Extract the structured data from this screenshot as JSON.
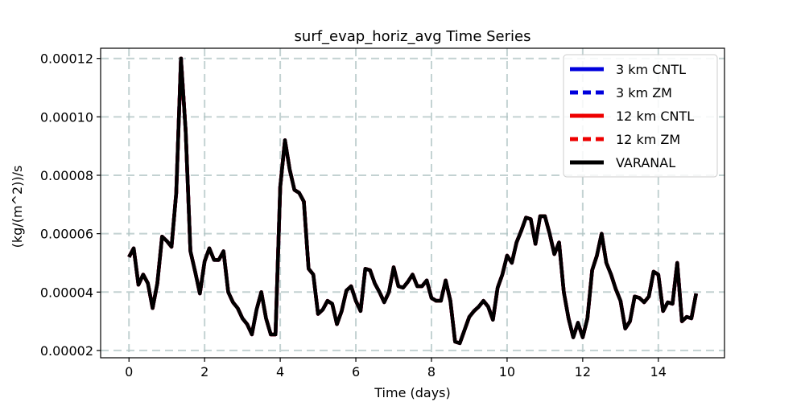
{
  "chart_data": {
    "type": "line",
    "title": "surf_evap_horiz_avg Time Series",
    "xlabel": "Time (days)",
    "ylabel": "(kg/(m^2))/s",
    "xlim": [
      -0.75,
      15.75
    ],
    "ylim": [
      1.75e-05,
      0.0001235
    ],
    "xticks": [
      0,
      2,
      4,
      6,
      8,
      10,
      12,
      14
    ],
    "xtick_labels": [
      "0",
      "2",
      "4",
      "6",
      "8",
      "10",
      "12",
      "14"
    ],
    "yticks": [
      2e-05,
      4e-05,
      6e-05,
      8e-05,
      0.0001,
      0.00012
    ],
    "ytick_labels": [
      "0.00002",
      "0.00004",
      "0.00006",
      "0.00008",
      "0.00010",
      "0.00012"
    ],
    "grid": true,
    "legend_position": "top-right",
    "x": [
      0,
      0.125,
      0.25,
      0.375,
      0.5,
      0.625,
      0.75,
      0.875,
      1,
      1.125,
      1.25,
      1.375,
      1.5,
      1.625,
      1.75,
      1.875,
      2,
      2.125,
      2.25,
      2.375,
      2.5,
      2.625,
      2.75,
      2.875,
      3,
      3.125,
      3.25,
      3.375,
      3.5,
      3.625,
      3.75,
      3.875,
      4,
      4.125,
      4.25,
      4.375,
      4.5,
      4.625,
      4.75,
      4.875,
      5,
      5.125,
      5.25,
      5.375,
      5.5,
      5.625,
      5.75,
      5.875,
      6,
      6.125,
      6.25,
      6.375,
      6.5,
      6.625,
      6.75,
      6.875,
      7,
      7.125,
      7.25,
      7.375,
      7.5,
      7.625,
      7.75,
      7.875,
      8,
      8.125,
      8.25,
      8.375,
      8.5,
      8.625,
      8.75,
      8.875,
      9,
      9.125,
      9.25,
      9.375,
      9.5,
      9.625,
      9.75,
      9.875,
      10,
      10.125,
      10.25,
      10.375,
      10.5,
      10.625,
      10.75,
      10.875,
      11,
      11.125,
      11.25,
      11.375,
      11.5,
      11.625,
      11.75,
      11.875,
      12,
      12.125,
      12.25,
      12.375,
      12.5,
      12.625,
      12.75,
      12.875,
      13,
      13.125,
      13.25,
      13.375,
      13.5,
      13.625,
      13.75,
      13.875,
      14,
      14.125,
      14.25,
      14.375,
      14.5,
      14.625,
      14.75,
      14.875,
      15
    ],
    "series": [
      {
        "name": "3 km CNTL",
        "color": "#0000dd",
        "dash": "solid",
        "values": [
          5.2e-05,
          5.5e-05,
          4.25e-05,
          4.6e-05,
          4.3e-05,
          3.45e-05,
          4.3e-05,
          5.9e-05,
          5.75e-05,
          5.55e-05,
          7.4e-05,
          0.00012,
          9.5e-05,
          5.4e-05,
          4.7e-05,
          3.95e-05,
          5.05e-05,
          5.5e-05,
          5.1e-05,
          5.1e-05,
          5.4e-05,
          4e-05,
          3.65e-05,
          3.45e-05,
          3.1e-05,
          2.9e-05,
          2.55e-05,
          3.4e-05,
          4e-05,
          3.1e-05,
          2.55e-05,
          2.55e-05,
          7.6e-05,
          9.2e-05,
          8.2e-05,
          7.5e-05,
          7.4e-05,
          7.1e-05,
          4.8e-05,
          4.6e-05,
          3.25e-05,
          3.4e-05,
          3.7e-05,
          3.6e-05,
          2.9e-05,
          3.35e-05,
          4.05e-05,
          4.2e-05,
          3.7e-05,
          3.35e-05,
          4.8e-05,
          4.75e-05,
          4.3e-05,
          4e-05,
          3.65e-05,
          4e-05,
          4.85e-05,
          4.2e-05,
          4.15e-05,
          4.35e-05,
          4.6e-05,
          4.2e-05,
          4.2e-05,
          4.4e-05,
          3.8e-05,
          3.7e-05,
          3.7e-05,
          4.4e-05,
          3.7e-05,
          2.3e-05,
          2.25e-05,
          2.7e-05,
          3.15e-05,
          3.35e-05,
          3.5e-05,
          3.7e-05,
          3.5e-05,
          3.05e-05,
          4.15e-05,
          4.6e-05,
          5.25e-05,
          5e-05,
          5.7e-05,
          6.1e-05,
          6.55e-05,
          6.5e-05,
          5.65e-05,
          6.6e-05,
          6.6e-05,
          6e-05,
          5.3e-05,
          5.7e-05,
          4e-05,
          3.1e-05,
          2.45e-05,
          2.95e-05,
          2.45e-05,
          3.1e-05,
          4.75e-05,
          5.25e-05,
          6e-05,
          5e-05,
          4.6e-05,
          4.1e-05,
          3.7e-05,
          2.75e-05,
          3e-05,
          3.85e-05,
          3.8e-05,
          3.65e-05,
          3.85e-05,
          4.7e-05,
          4.6e-05,
          3.35e-05,
          3.65e-05,
          3.6e-05,
          5e-05,
          3e-05,
          3.15e-05,
          3.1e-05,
          3.95e-05
        ]
      },
      {
        "name": "3 km ZM",
        "color": "#0000dd",
        "dash": "dashed",
        "values": [
          5.2e-05,
          5.5e-05,
          4.25e-05,
          4.6e-05,
          4.3e-05,
          3.45e-05,
          4.3e-05,
          5.9e-05,
          5.75e-05,
          5.55e-05,
          7.4e-05,
          0.00012,
          9.5e-05,
          5.4e-05,
          4.7e-05,
          3.95e-05,
          5.05e-05,
          5.5e-05,
          5.1e-05,
          5.1e-05,
          5.4e-05,
          4e-05,
          3.65e-05,
          3.45e-05,
          3.1e-05,
          2.9e-05,
          2.55e-05,
          3.4e-05,
          4e-05,
          3.1e-05,
          2.55e-05,
          2.55e-05,
          7.6e-05,
          9.2e-05,
          8.2e-05,
          7.5e-05,
          7.4e-05,
          7.1e-05,
          4.8e-05,
          4.6e-05,
          3.25e-05,
          3.4e-05,
          3.7e-05,
          3.6e-05,
          2.9e-05,
          3.35e-05,
          4.05e-05,
          4.2e-05,
          3.7e-05,
          3.35e-05,
          4.8e-05,
          4.75e-05,
          4.3e-05,
          4e-05,
          3.65e-05,
          4e-05,
          4.85e-05,
          4.2e-05,
          4.15e-05,
          4.35e-05,
          4.6e-05,
          4.2e-05,
          4.2e-05,
          4.4e-05,
          3.8e-05,
          3.7e-05,
          3.7e-05,
          4.4e-05,
          3.7e-05,
          2.3e-05,
          2.25e-05,
          2.7e-05,
          3.15e-05,
          3.35e-05,
          3.5e-05,
          3.7e-05,
          3.5e-05,
          3.05e-05,
          4.15e-05,
          4.6e-05,
          5.25e-05,
          5e-05,
          5.7e-05,
          6.1e-05,
          6.55e-05,
          6.5e-05,
          5.65e-05,
          6.6e-05,
          6.6e-05,
          6e-05,
          5.3e-05,
          5.7e-05,
          4e-05,
          3.1e-05,
          2.45e-05,
          2.95e-05,
          2.45e-05,
          3.1e-05,
          4.75e-05,
          5.25e-05,
          6e-05,
          5e-05,
          4.6e-05,
          4.1e-05,
          3.7e-05,
          2.75e-05,
          3e-05,
          3.85e-05,
          3.8e-05,
          3.65e-05,
          3.85e-05,
          4.7e-05,
          4.6e-05,
          3.35e-05,
          3.65e-05,
          3.6e-05,
          5e-05,
          3e-05,
          3.15e-05,
          3.1e-05,
          3.95e-05
        ]
      },
      {
        "name": "12 km CNTL",
        "color": "#ee0000",
        "dash": "solid",
        "values": [
          5.2e-05,
          5.5e-05,
          4.25e-05,
          4.6e-05,
          4.3e-05,
          3.45e-05,
          4.3e-05,
          5.9e-05,
          5.75e-05,
          5.55e-05,
          7.4e-05,
          0.00012,
          9.5e-05,
          5.4e-05,
          4.7e-05,
          3.95e-05,
          5.05e-05,
          5.5e-05,
          5.1e-05,
          5.1e-05,
          5.4e-05,
          4e-05,
          3.65e-05,
          3.45e-05,
          3.1e-05,
          2.9e-05,
          2.55e-05,
          3.4e-05,
          4e-05,
          3.1e-05,
          2.55e-05,
          2.55e-05,
          7.6e-05,
          9.2e-05,
          8.2e-05,
          7.5e-05,
          7.4e-05,
          7.1e-05,
          4.8e-05,
          4.6e-05,
          3.25e-05,
          3.4e-05,
          3.7e-05,
          3.6e-05,
          2.9e-05,
          3.35e-05,
          4.05e-05,
          4.2e-05,
          3.7e-05,
          3.35e-05,
          4.8e-05,
          4.75e-05,
          4.3e-05,
          4e-05,
          3.65e-05,
          4e-05,
          4.85e-05,
          4.2e-05,
          4.15e-05,
          4.35e-05,
          4.6e-05,
          4.2e-05,
          4.2e-05,
          4.4e-05,
          3.8e-05,
          3.7e-05,
          3.7e-05,
          4.4e-05,
          3.7e-05,
          2.3e-05,
          2.25e-05,
          2.7e-05,
          3.15e-05,
          3.35e-05,
          3.5e-05,
          3.7e-05,
          3.5e-05,
          3.05e-05,
          4.15e-05,
          4.6e-05,
          5.25e-05,
          5e-05,
          5.7e-05,
          6.1e-05,
          6.55e-05,
          6.5e-05,
          5.65e-05,
          6.6e-05,
          6.6e-05,
          6e-05,
          5.3e-05,
          5.7e-05,
          4e-05,
          3.1e-05,
          2.45e-05,
          2.95e-05,
          2.45e-05,
          3.1e-05,
          4.75e-05,
          5.25e-05,
          6e-05,
          5e-05,
          4.6e-05,
          4.1e-05,
          3.7e-05,
          2.75e-05,
          3e-05,
          3.85e-05,
          3.8e-05,
          3.65e-05,
          3.85e-05,
          4.7e-05,
          4.6e-05,
          3.35e-05,
          3.65e-05,
          3.6e-05,
          5e-05,
          3e-05,
          3.15e-05,
          3.1e-05,
          3.95e-05
        ]
      },
      {
        "name": "12 km ZM",
        "color": "#ee0000",
        "dash": "dashed",
        "values": [
          5.2e-05,
          5.5e-05,
          4.25e-05,
          4.6e-05,
          4.3e-05,
          3.45e-05,
          4.3e-05,
          5.9e-05,
          5.75e-05,
          5.55e-05,
          7.4e-05,
          0.00012,
          9.5e-05,
          5.4e-05,
          4.7e-05,
          3.95e-05,
          5.05e-05,
          5.5e-05,
          5.1e-05,
          5.1e-05,
          5.4e-05,
          4e-05,
          3.65e-05,
          3.45e-05,
          3.1e-05,
          2.9e-05,
          2.55e-05,
          3.4e-05,
          4e-05,
          3.1e-05,
          2.55e-05,
          2.55e-05,
          7.6e-05,
          9.2e-05,
          8.2e-05,
          7.5e-05,
          7.4e-05,
          7.1e-05,
          4.8e-05,
          4.6e-05,
          3.25e-05,
          3.4e-05,
          3.7e-05,
          3.6e-05,
          2.9e-05,
          3.35e-05,
          4.05e-05,
          4.2e-05,
          3.7e-05,
          3.35e-05,
          4.8e-05,
          4.75e-05,
          4.3e-05,
          4e-05,
          3.65e-05,
          4e-05,
          4.85e-05,
          4.2e-05,
          4.15e-05,
          4.35e-05,
          4.6e-05,
          4.2e-05,
          4.2e-05,
          4.4e-05,
          3.8e-05,
          3.7e-05,
          3.7e-05,
          4.4e-05,
          3.7e-05,
          2.3e-05,
          2.25e-05,
          2.7e-05,
          3.15e-05,
          3.35e-05,
          3.5e-05,
          3.7e-05,
          3.5e-05,
          3.05e-05,
          4.15e-05,
          4.6e-05,
          5.25e-05,
          5e-05,
          5.7e-05,
          6.1e-05,
          6.55e-05,
          6.5e-05,
          5.65e-05,
          6.6e-05,
          6.6e-05,
          6e-05,
          5.3e-05,
          5.7e-05,
          4e-05,
          3.1e-05,
          2.45e-05,
          2.95e-05,
          2.45e-05,
          3.1e-05,
          4.75e-05,
          5.25e-05,
          6e-05,
          5e-05,
          4.6e-05,
          4.1e-05,
          3.7e-05,
          2.75e-05,
          3e-05,
          3.85e-05,
          3.8e-05,
          3.65e-05,
          3.85e-05,
          4.7e-05,
          4.6e-05,
          3.35e-05,
          3.65e-05,
          3.6e-05,
          5e-05,
          3e-05,
          3.15e-05,
          3.1e-05,
          3.95e-05
        ]
      },
      {
        "name": "VARANAL",
        "color": "#000000",
        "dash": "solid",
        "values": [
          5.2e-05,
          5.5e-05,
          4.25e-05,
          4.6e-05,
          4.3e-05,
          3.45e-05,
          4.3e-05,
          5.9e-05,
          5.75e-05,
          5.55e-05,
          7.4e-05,
          0.00012,
          9.5e-05,
          5.4e-05,
          4.7e-05,
          3.95e-05,
          5.05e-05,
          5.5e-05,
          5.1e-05,
          5.1e-05,
          5.4e-05,
          4e-05,
          3.65e-05,
          3.45e-05,
          3.1e-05,
          2.9e-05,
          2.55e-05,
          3.4e-05,
          4e-05,
          3.1e-05,
          2.55e-05,
          2.55e-05,
          7.6e-05,
          9.2e-05,
          8.2e-05,
          7.5e-05,
          7.4e-05,
          7.1e-05,
          4.8e-05,
          4.6e-05,
          3.25e-05,
          3.4e-05,
          3.7e-05,
          3.6e-05,
          2.9e-05,
          3.35e-05,
          4.05e-05,
          4.2e-05,
          3.7e-05,
          3.35e-05,
          4.8e-05,
          4.75e-05,
          4.3e-05,
          4e-05,
          3.65e-05,
          4e-05,
          4.85e-05,
          4.2e-05,
          4.15e-05,
          4.35e-05,
          4.6e-05,
          4.2e-05,
          4.2e-05,
          4.4e-05,
          3.8e-05,
          3.7e-05,
          3.7e-05,
          4.4e-05,
          3.7e-05,
          2.3e-05,
          2.25e-05,
          2.7e-05,
          3.15e-05,
          3.35e-05,
          3.5e-05,
          3.7e-05,
          3.5e-05,
          3.05e-05,
          4.15e-05,
          4.6e-05,
          5.25e-05,
          5e-05,
          5.7e-05,
          6.1e-05,
          6.55e-05,
          6.5e-05,
          5.65e-05,
          6.6e-05,
          6.6e-05,
          6e-05,
          5.3e-05,
          5.7e-05,
          4e-05,
          3.1e-05,
          2.45e-05,
          2.95e-05,
          2.45e-05,
          3.1e-05,
          4.75e-05,
          5.25e-05,
          6e-05,
          5e-05,
          4.6e-05,
          4.1e-05,
          3.7e-05,
          2.75e-05,
          3e-05,
          3.85e-05,
          3.8e-05,
          3.65e-05,
          3.85e-05,
          4.7e-05,
          4.6e-05,
          3.35e-05,
          3.65e-05,
          3.6e-05,
          5e-05,
          3e-05,
          3.15e-05,
          3.1e-05,
          3.95e-05
        ]
      }
    ]
  }
}
